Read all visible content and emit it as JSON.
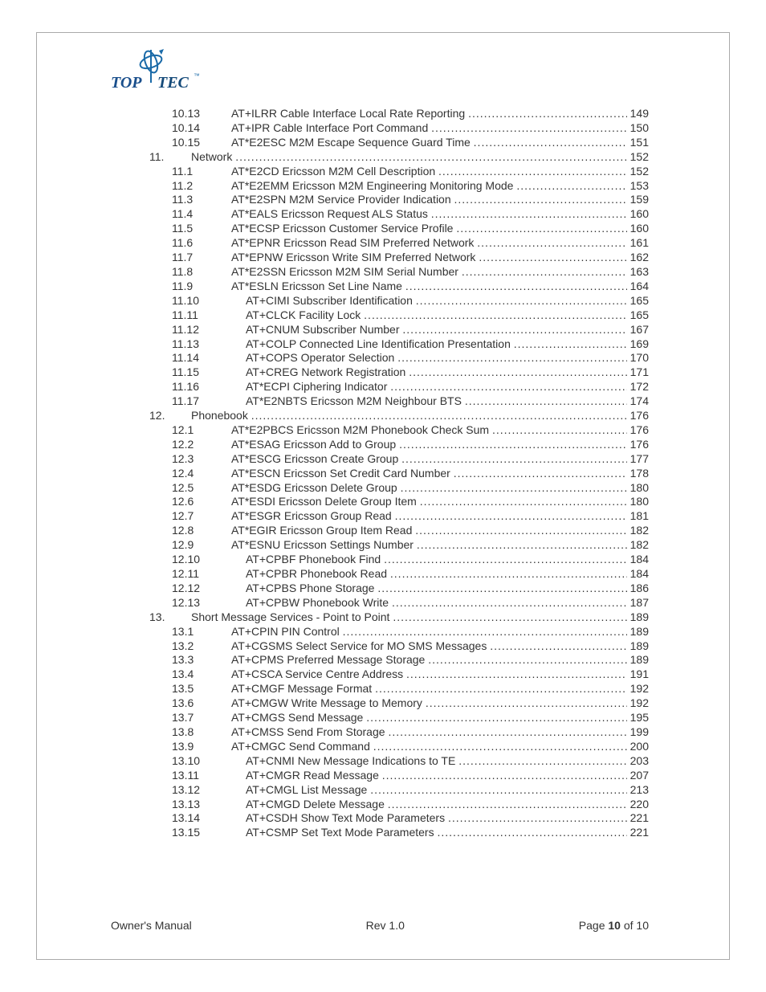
{
  "logo_top": "TOP",
  "logo_tec": "TEC",
  "sections": [
    {
      "n": "10.13",
      "t": "AT+ILRR Cable Interface Local Rate Reporting",
      "p": "149",
      "shift": false
    },
    {
      "n": "10.14",
      "t": "AT+IPR Cable Interface Port Command",
      "p": "150",
      "shift": false
    },
    {
      "n": "10.15",
      "t": "AT*E2ESC M2M Escape Sequence Guard Time",
      "p": "151",
      "shift": false
    },
    {
      "n": "11.",
      "t": "Network",
      "p": "152",
      "section": true
    },
    {
      "n": "11.1",
      "t": "AT*E2CD Ericsson M2M Cell Description",
      "p": "152",
      "shift": false
    },
    {
      "n": "11.2",
      "t": "AT*E2EMM Ericsson M2M Engineering Monitoring Mode",
      "p": "153",
      "shift": false
    },
    {
      "n": "11.3",
      "t": "AT*E2SPN M2M Service Provider Indication",
      "p": "159",
      "shift": false
    },
    {
      "n": "11.4",
      "t": "AT*EALS Ericsson Request ALS Status",
      "p": "160",
      "shift": false
    },
    {
      "n": "11.5",
      "t": "AT*ECSP Ericsson Customer Service Profile",
      "p": "160",
      "shift": false
    },
    {
      "n": "11.6",
      "t": "AT*EPNR Ericsson Read SIM Preferred Network",
      "p": "161",
      "shift": false
    },
    {
      "n": "11.7",
      "t": "AT*EPNW Ericsson Write SIM Preferred Network",
      "p": "162",
      "shift": false
    },
    {
      "n": "11.8",
      "t": "AT*E2SSN Ericsson M2M SIM Serial Number",
      "p": "163",
      "shift": false
    },
    {
      "n": "11.9",
      "t": "AT*ESLN Ericsson Set Line Name",
      "p": "164",
      "shift": false
    },
    {
      "n": "11.10",
      "t": "AT+CIMI Subscriber Identification",
      "p": "165",
      "shift": true
    },
    {
      "n": "11.11",
      "t": "AT+CLCK Facility Lock",
      "p": "165",
      "shift": true
    },
    {
      "n": "11.12",
      "t": "AT+CNUM Subscriber Number",
      "p": "167",
      "shift": true
    },
    {
      "n": "11.13",
      "t": "AT+COLP Connected Line Identification Presentation",
      "p": "169",
      "shift": true
    },
    {
      "n": "11.14",
      "t": "AT+COPS Operator Selection",
      "p": "170",
      "shift": true
    },
    {
      "n": "11.15",
      "t": "AT+CREG Network Registration",
      "p": "171",
      "shift": true
    },
    {
      "n": "11.16",
      "t": "AT*ECPI Ciphering Indicator",
      "p": "172",
      "shift": true
    },
    {
      "n": "11.17",
      "t": "AT*E2NBTS Ericsson M2M Neighbour BTS",
      "p": "174",
      "shift": true
    },
    {
      "n": "12.",
      "t": "Phonebook",
      "p": "176",
      "section": true
    },
    {
      "n": "12.1",
      "t": "AT*E2PBCS Ericsson M2M Phonebook Check Sum",
      "p": "176",
      "shift": false
    },
    {
      "n": "12.2",
      "t": "AT*ESAG Ericsson Add to Group",
      "p": "176",
      "shift": false
    },
    {
      "n": "12.3",
      "t": "AT*ESCG Ericsson Create Group",
      "p": "177",
      "shift": false
    },
    {
      "n": "12.4",
      "t": "AT*ESCN Ericsson Set Credit Card Number",
      "p": "178",
      "shift": false
    },
    {
      "n": "12.5",
      "t": "AT*ESDG Ericsson Delete Group",
      "p": "180",
      "shift": false
    },
    {
      "n": "12.6",
      "t": "AT*ESDI Ericsson Delete Group Item",
      "p": "180",
      "shift": false
    },
    {
      "n": "12.7",
      "t": "AT*ESGR Ericsson Group Read",
      "p": "181",
      "shift": false
    },
    {
      "n": "12.8",
      "t": "AT*EGIR Ericsson Group Item Read",
      "p": "182",
      "shift": false
    },
    {
      "n": "12.9",
      "t": "AT*ESNU Ericsson Settings Number",
      "p": "182",
      "shift": false
    },
    {
      "n": "12.10",
      "t": "AT+CPBF Phonebook Find",
      "p": "184",
      "shift": true
    },
    {
      "n": "12.11",
      "t": "AT+CPBR Phonebook Read",
      "p": "184",
      "shift": true
    },
    {
      "n": "12.12",
      "t": "AT+CPBS Phone Storage",
      "p": "186",
      "shift": true
    },
    {
      "n": "12.13",
      "t": "AT+CPBW Phonebook Write",
      "p": "187",
      "shift": true
    },
    {
      "n": "13.",
      "t": "Short Message Services - Point to Point",
      "p": "189",
      "section": true
    },
    {
      "n": "13.1",
      "t": "AT+CPIN PIN Control",
      "p": "189",
      "shift": false
    },
    {
      "n": "13.2",
      "t": "AT+CGSMS Select Service for MO SMS Messages",
      "p": "189",
      "shift": false
    },
    {
      "n": "13.3",
      "t": "AT+CPMS Preferred Message Storage",
      "p": "189",
      "shift": false
    },
    {
      "n": "13.4",
      "t": "AT+CSCA Service Centre Address",
      "p": "191",
      "shift": false
    },
    {
      "n": "13.5",
      "t": "AT+CMGF Message Format",
      "p": "192",
      "shift": false
    },
    {
      "n": "13.6",
      "t": "AT+CMGW Write Message to Memory",
      "p": "192",
      "shift": false
    },
    {
      "n": "13.7",
      "t": "AT+CMGS Send Message",
      "p": "195",
      "shift": false
    },
    {
      "n": "13.8",
      "t": "AT+CMSS Send From Storage",
      "p": "199",
      "shift": false
    },
    {
      "n": "13.9",
      "t": "AT+CMGC Send Command",
      "p": "200",
      "shift": false
    },
    {
      "n": "13.10",
      "t": "AT+CNMI New Message Indications to TE",
      "p": "203",
      "shift": true
    },
    {
      "n": "13.11",
      "t": "AT+CMGR Read Message",
      "p": "207",
      "shift": true
    },
    {
      "n": "13.12",
      "t": "AT+CMGL List Message",
      "p": "213",
      "shift": true
    },
    {
      "n": "13.13",
      "t": "AT+CMGD Delete Message",
      "p": "220",
      "shift": true
    },
    {
      "n": "13.14",
      "t": "AT+CSDH Show Text Mode Parameters",
      "p": "221",
      "shift": true
    },
    {
      "n": "13.15",
      "t": "AT+CSMP Set Text Mode Parameters",
      "p": "221",
      "shift": true
    }
  ],
  "footer": {
    "left": "Owner's Manual",
    "center": "Rev 1.0",
    "right_prefix": "Page ",
    "right_page": "10",
    "right_suffix": " of 10"
  }
}
